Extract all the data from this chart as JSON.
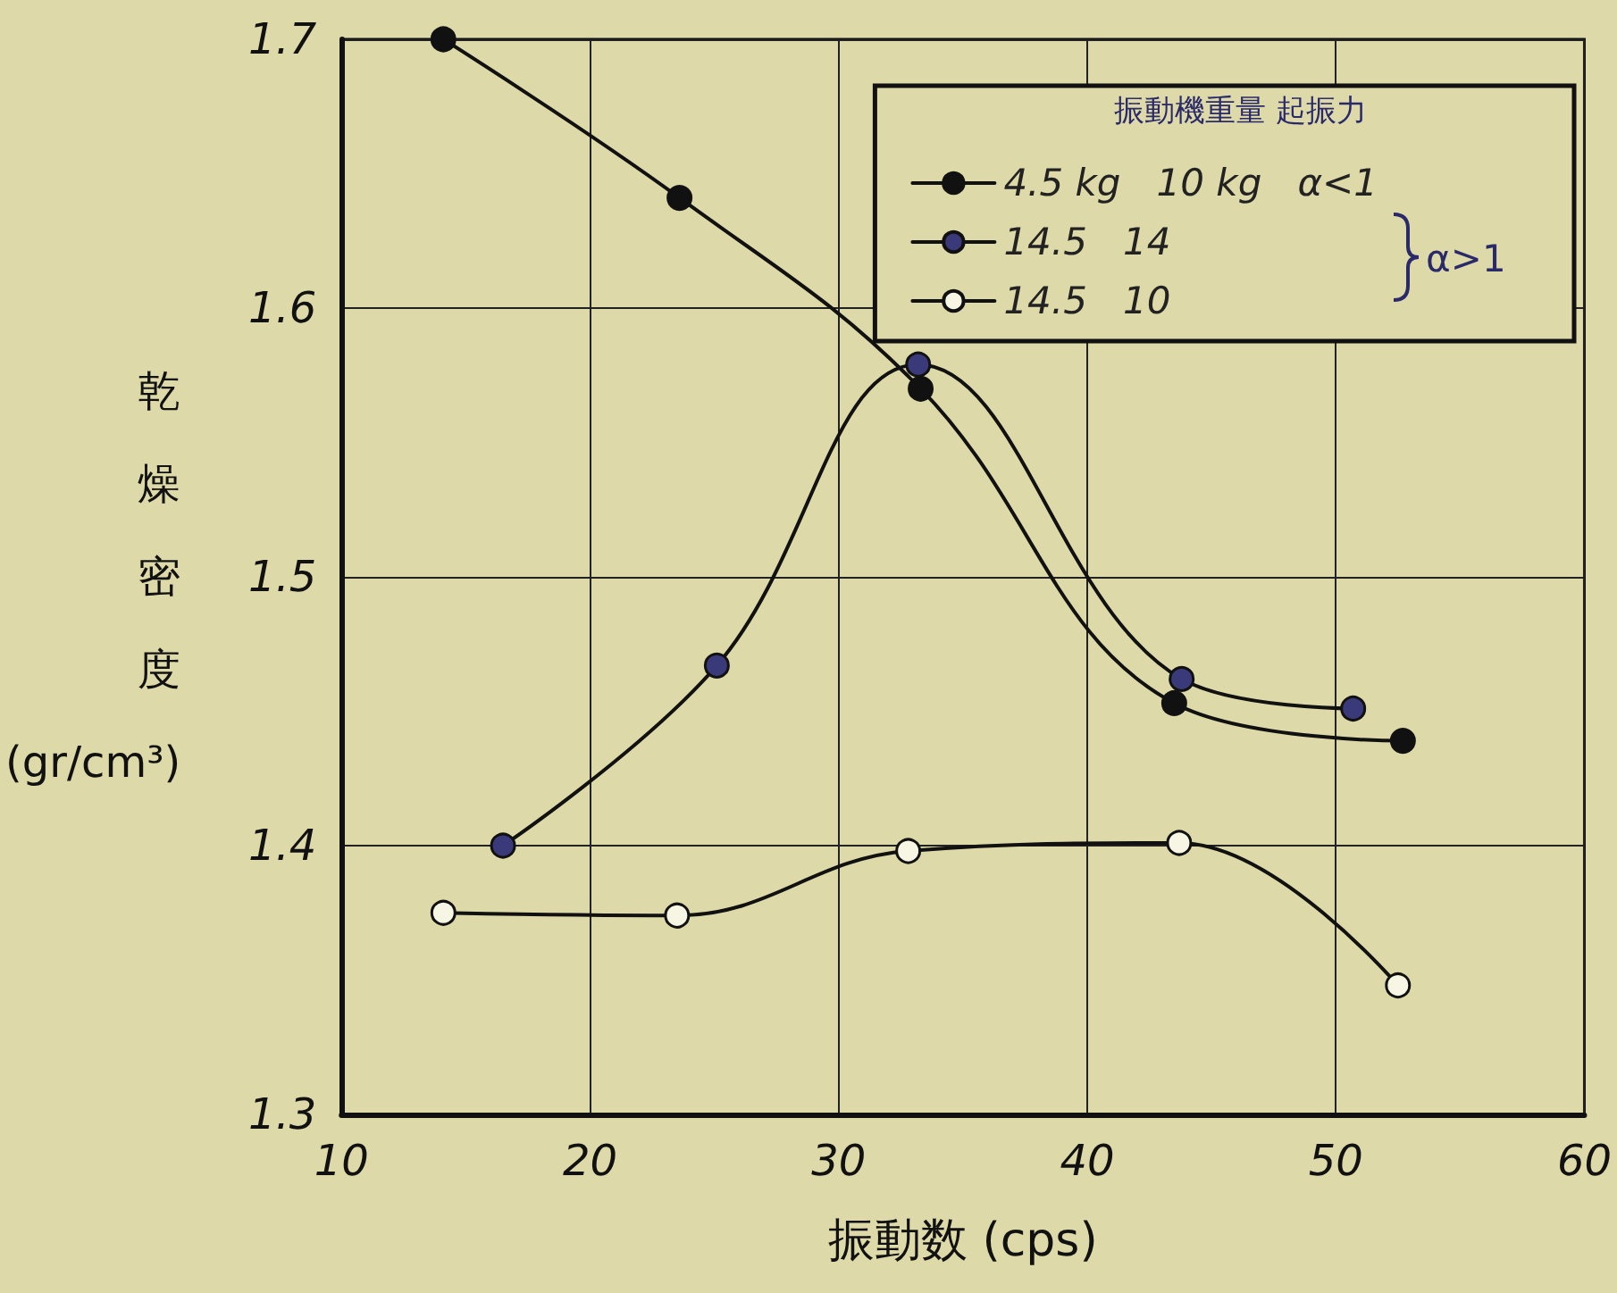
{
  "chart_data": {
    "type": "line",
    "xlabel": "振動数 (cps)",
    "ylabel": "乾燥密度 (gr/cm³)",
    "legend_title": "振動機重量 起振力",
    "annotations": [
      "α>1"
    ],
    "xlim": [
      10,
      60
    ],
    "xticks": [
      10,
      20,
      30,
      40,
      50,
      60
    ],
    "ylim": [
      1.3,
      1.7
    ],
    "yticks": [
      1.3,
      1.4,
      1.5,
      1.6,
      1.7
    ],
    "grid": true,
    "legend": "top right",
    "marker": "circle",
    "line_style": "solid",
    "series": [
      {
        "name": "4.5 kg   10 kg   α<1",
        "color": "#111111",
        "x": [
          14.1,
          23.6,
          33.3,
          43.5,
          52.7
        ],
        "values": [
          1.7,
          1.641,
          1.57,
          1.453,
          1.439
        ]
      },
      {
        "name": "14.5   14",
        "color": "#3a3a7a",
        "x": [
          16.5,
          25.1,
          33.2,
          43.8,
          50.7
        ],
        "values": [
          1.4,
          1.467,
          1.579,
          1.462,
          1.451
        ]
      },
      {
        "name": "14.5   10",
        "color": "#f7f5e4",
        "x": [
          14.1,
          23.5,
          32.8,
          43.7,
          52.5
        ],
        "values": [
          1.375,
          1.374,
          1.398,
          1.401,
          1.348
        ]
      }
    ]
  }
}
